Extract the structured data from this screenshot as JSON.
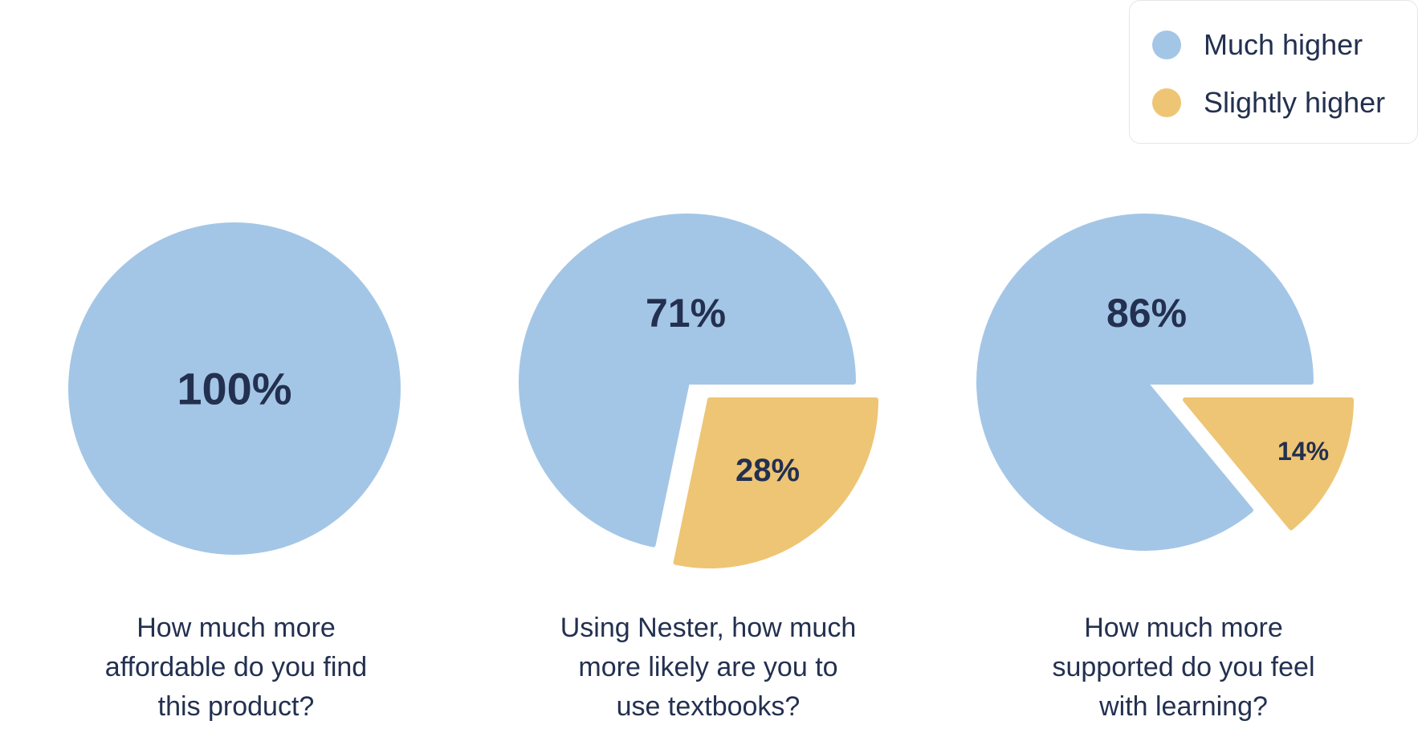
{
  "colors": {
    "much_higher": "#a4c6e6",
    "slightly_higher": "#eec574",
    "text": "#23304f"
  },
  "legend": {
    "items": [
      {
        "label": "Much higher",
        "color": "#a4c6e6"
      },
      {
        "label": "Slightly higher",
        "color": "#eec574"
      }
    ]
  },
  "chart_data": [
    {
      "type": "pie",
      "title_lines": [
        "How much more",
        "affordable do you find",
        "this product?"
      ],
      "slices": [
        {
          "series": "Much higher",
          "value": 100,
          "label": "100%"
        }
      ]
    },
    {
      "type": "pie",
      "title_lines": [
        "Using Nester, how much",
        "more likely are you to",
        "use textbooks?"
      ],
      "slices": [
        {
          "series": "Much higher",
          "value": 71,
          "label": "71%"
        },
        {
          "series": "Slightly higher",
          "value": 28,
          "label": "28%"
        }
      ]
    },
    {
      "type": "pie",
      "title_lines": [
        "How much more",
        "supported do you feel",
        "with learning?"
      ],
      "slices": [
        {
          "series": "Much higher",
          "value": 86,
          "label": "86%"
        },
        {
          "series": "Slightly higher",
          "value": 14,
          "label": "14%"
        }
      ]
    }
  ]
}
